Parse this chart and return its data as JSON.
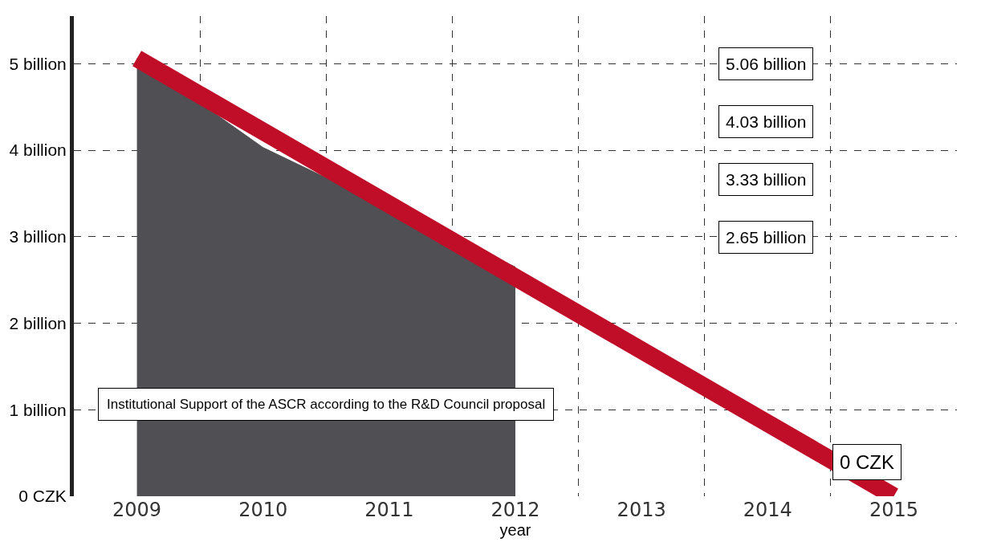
{
  "chart_data": {
    "type": "area",
    "categories": [
      "2009",
      "2010",
      "2011",
      "2012",
      "2013",
      "2014",
      "2015"
    ],
    "series": [
      {
        "name": "Institutional Support of the ASCR according to the R&D Council proposal",
        "color": "#505054",
        "values": [
          5.06,
          4.03,
          3.33,
          2.65,
          null,
          null,
          null
        ]
      },
      {
        "type": "line",
        "color": "#c00d28",
        "values": [
          5.06,
          null,
          null,
          null,
          null,
          null,
          0
        ]
      }
    ],
    "xlabel": "year",
    "ylim": [
      0,
      5.55
    ],
    "yticks": [
      {
        "value": 0,
        "label": "0 CZK"
      },
      {
        "value": 1,
        "label": "1 billion"
      },
      {
        "value": 2,
        "label": "2 billion"
      },
      {
        "value": 3,
        "label": "3 billion"
      },
      {
        "value": 4,
        "label": "4 billion"
      },
      {
        "value": 5,
        "label": "5 billion"
      }
    ],
    "annotations": [
      "5.06 billion",
      "4.03 billion",
      "3.33 billion",
      "2.65 billion",
      {
        "text": "0 CZK",
        "x": "2015",
        "y": 0
      }
    ],
    "grid": true
  }
}
